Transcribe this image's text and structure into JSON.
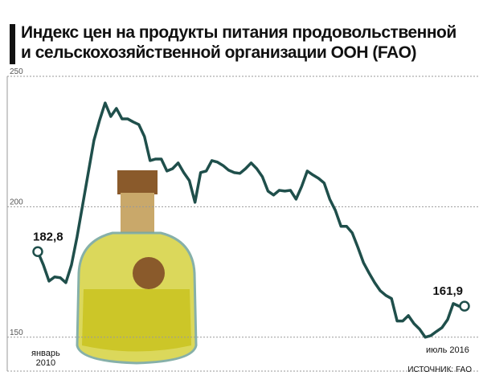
{
  "chart_data": {
    "type": "line",
    "title": "Индекс цен на продукты питания продовольственной\nи сельскохозяйственной организации ООН (FAO)",
    "source": "ИСТОЧНИК: FAO",
    "categories": [
      "январь\n2010",
      null,
      null,
      null,
      null,
      null,
      null,
      null,
      null,
      null,
      null,
      null,
      null,
      null,
      null,
      null,
      null,
      null,
      null,
      null,
      null,
      null,
      null,
      null,
      null,
      null,
      null,
      null,
      null,
      null,
      null,
      null,
      null,
      null,
      null,
      null,
      null,
      null,
      null,
      null,
      null,
      null,
      null,
      null,
      null,
      null,
      null,
      null,
      null,
      null,
      null,
      null,
      null,
      null,
      null,
      null,
      null,
      null,
      null,
      null,
      null,
      null,
      null,
      null,
      null,
      null,
      null,
      null,
      null,
      null,
      null,
      null,
      null,
      null,
      null,
      null,
      "июль 2016"
    ],
    "values": [
      182.8,
      177.7,
      171.5,
      173.1,
      172.8,
      170.9,
      177.7,
      188.5,
      200.8,
      213.1,
      225.4,
      233.1,
      239.8,
      234.6,
      237.7,
      233.7,
      233.7,
      232.5,
      231.5,
      226.9,
      217.7,
      218.3,
      218.3,
      213.7,
      214.6,
      216.8,
      213.1,
      210,
      201.7,
      213.1,
      213.7,
      217.7,
      217.1,
      215.8,
      214,
      213.1,
      212.8,
      214.6,
      216.8,
      214.6,
      211.5,
      206,
      204.5,
      206.3,
      206,
      206.3,
      202.9,
      207.8,
      213.7,
      212.2,
      210.9,
      209.1,
      202.9,
      198.6,
      192.5,
      192.5,
      190,
      184.5,
      178.6,
      174.6,
      170.9,
      167.8,
      166,
      164.8,
      156.2,
      156.2,
      158.3,
      155.2,
      153.1,
      150,
      150.6,
      152.2,
      153.7,
      156.8,
      162.9,
      161.9,
      161.9
    ],
    "value_labels": [
      "182,8",
      null,
      null,
      null,
      null,
      null,
      null,
      null,
      null,
      null,
      null,
      null,
      null,
      null,
      null,
      null,
      null,
      null,
      null,
      null,
      null,
      null,
      null,
      null,
      null,
      null,
      null,
      null,
      null,
      null,
      null,
      null,
      null,
      null,
      null,
      null,
      null,
      null,
      null,
      null,
      null,
      null,
      null,
      null,
      null,
      null,
      null,
      null,
      null,
      null,
      null,
      null,
      null,
      null,
      null,
      null,
      null,
      null,
      null,
      null,
      null,
      null,
      null,
      null,
      null,
      null,
      null,
      null,
      null,
      null,
      null,
      null,
      null,
      null,
      null,
      null,
      "161,9"
    ],
    "color": "#1f4f4b",
    "ylim": [
      137,
      250
    ],
    "yticks": [
      150,
      200,
      250
    ],
    "grid": true
  }
}
